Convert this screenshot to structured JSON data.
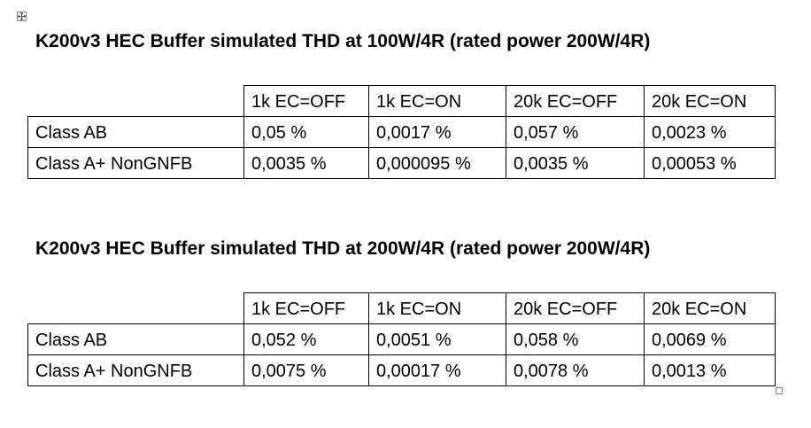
{
  "document": {
    "tables": [
      {
        "title": "K200v3 HEC Buffer simulated THD at 100W/4R (rated power 200W/4R)",
        "columns": [
          "1k EC=OFF",
          "1k EC=ON",
          "20k EC=OFF",
          "20k EC=ON"
        ],
        "rows": [
          {
            "label": "Class AB",
            "values": [
              "0,05 %",
              "0,0017 %",
              "0,057 %",
              "0,0023 %"
            ]
          },
          {
            "label": "Class A+ NonGNFB",
            "values": [
              "0,0035 %",
              "0,000095 %",
              "0,0035 %",
              "0,00053 %"
            ]
          }
        ]
      },
      {
        "title": "K200v3 HEC Buffer simulated THD at 200W/4R (rated power 200W/4R)",
        "columns": [
          "1k EC=OFF",
          "1k EC=ON",
          "20k EC=OFF",
          "20k EC=ON"
        ],
        "rows": [
          {
            "label": "Class AB",
            "values": [
              "0,052 %",
              "0,0051 %",
              "0,058 %",
              "0,0069 %"
            ]
          },
          {
            "label": "Class A+ NonGNFB",
            "values": [
              "0,0075 %",
              "0,00017 %",
              "0,0078 %",
              "0,0013 %"
            ]
          }
        ]
      }
    ]
  }
}
